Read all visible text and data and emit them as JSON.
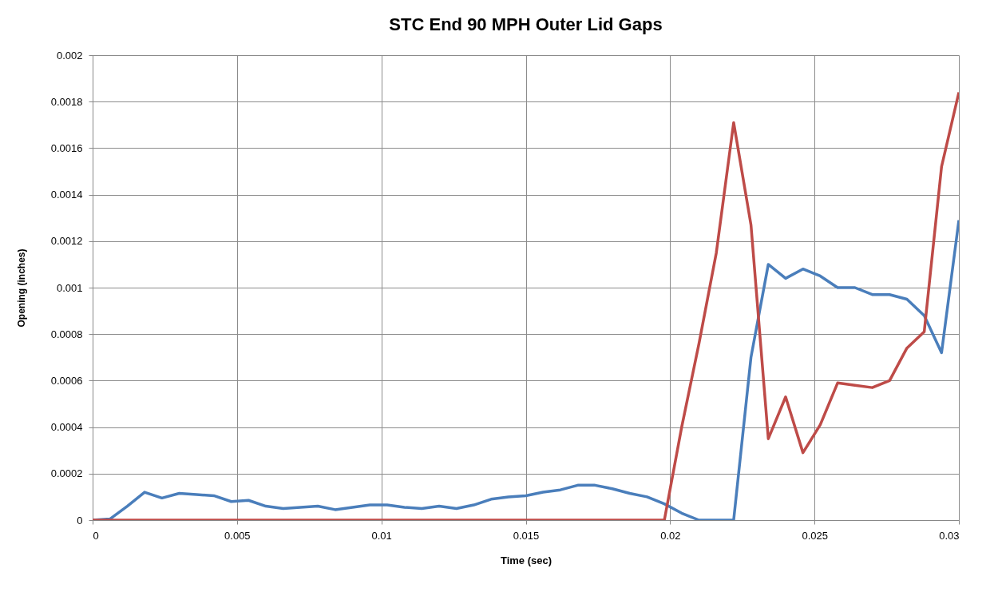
{
  "chart_data": {
    "type": "line",
    "title": "STC End 90 MPH Outer Lid Gaps",
    "xlabel": "Time (sec)",
    "ylabel": "Opening (inches)",
    "x": [
      0,
      0.0006,
      0.0012,
      0.0018,
      0.0024,
      0.003,
      0.0036,
      0.0042,
      0.0048,
      0.0054,
      0.006,
      0.0066,
      0.0072,
      0.0078,
      0.0084,
      0.009,
      0.0096,
      0.0102,
      0.0108,
      0.0114,
      0.012,
      0.0126,
      0.0132,
      0.0138,
      0.0144,
      0.015,
      0.0156,
      0.0162,
      0.0168,
      0.0174,
      0.018,
      0.0186,
      0.0192,
      0.0198,
      0.0204,
      0.021,
      0.0216,
      0.0222,
      0.0228,
      0.0234,
      0.024,
      0.0246,
      0.0252,
      0.0258,
      0.0264,
      0.027,
      0.0276,
      0.0282,
      0.0288,
      0.0294,
      0.03
    ],
    "series": [
      {
        "color": "#4a7ebb",
        "values": [
          0,
          5e-06,
          6e-05,
          0.00012,
          9.5e-05,
          0.000115,
          0.00011,
          0.000105,
          8e-05,
          8.5e-05,
          6e-05,
          5e-05,
          5.5e-05,
          6e-05,
          4.5e-05,
          5.5e-05,
          6.5e-05,
          6.5e-05,
          5.5e-05,
          5e-05,
          6e-05,
          5e-05,
          6.5e-05,
          9e-05,
          0.0001,
          0.000105,
          0.00012,
          0.00013,
          0.00015,
          0.00015,
          0.000135,
          0.000115,
          0.0001,
          7e-05,
          3e-05,
          0,
          0,
          0,
          0.0007,
          0.0011,
          0.00104,
          0.00108,
          0.00105,
          0.001,
          0.001,
          0.00097,
          0.00097,
          0.00095,
          0.00088,
          0.00072,
          0.00129
        ]
      },
      {
        "color": "#be4b48",
        "values": [
          0,
          0,
          0,
          0,
          0,
          0,
          0,
          0,
          0,
          0,
          0,
          0,
          0,
          0,
          0,
          0,
          0,
          0,
          0,
          0,
          0,
          0,
          0,
          0,
          0,
          0,
          0,
          0,
          0,
          0,
          0,
          0,
          0,
          0,
          0.0004,
          0.00076,
          0.00115,
          0.00171,
          0.00127,
          0.00035,
          0.00053,
          0.00029,
          0.00041,
          0.00059,
          0.00058,
          0.00057,
          0.0006,
          0.00074,
          0.00081,
          0.00152,
          0.00184
        ]
      }
    ],
    "xlim": [
      0,
      0.03
    ],
    "xticks": [
      0,
      0.005,
      0.01,
      0.015,
      0.02,
      0.025,
      0.03
    ],
    "ylim": [
      0,
      0.002
    ],
    "yticks": [
      0,
      0.0002,
      0.0004,
      0.0006,
      0.0008,
      0.001,
      0.0012,
      0.0014,
      0.0016,
      0.0018,
      0.002
    ],
    "grid": true,
    "legend": false
  }
}
